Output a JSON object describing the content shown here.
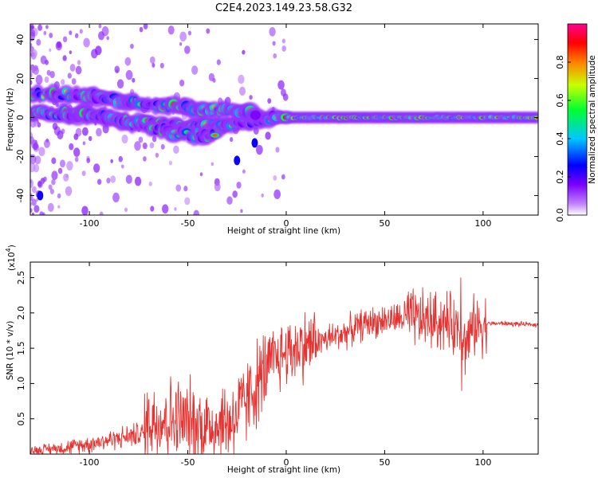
{
  "title": "C2E4.2023.149.23.58.G32",
  "colors": {
    "snr_line": "#e8322f",
    "spectrum_background": "#ffffff",
    "colormap": [
      "#ffffff",
      "#8a00ff",
      "#0000ff",
      "#00d0ff",
      "#00ff40",
      "#d4ff00",
      "#ff8000",
      "#ff0000",
      "#ff0090"
    ]
  },
  "chart_data": [
    {
      "type": "heatmap",
      "name": "spectrogram",
      "xlabel": "Height of straight line (km)",
      "ylabel": "Frequency (Hz)",
      "xlim": [
        -130,
        128
      ],
      "ylim": [
        -50,
        48
      ],
      "xticks": [
        -100,
        -50,
        0,
        50,
        100
      ],
      "yticks": [
        -40,
        -20,
        0,
        20,
        40
      ],
      "colorbar": {
        "label": "Normalized spectral amplitude",
        "range": [
          0,
          1
        ],
        "ticks": [
          0.0,
          0.2,
          0.4,
          0.6,
          0.8
        ]
      },
      "tracks": [
        {
          "x": [
            -130,
            -110,
            -95,
            -80,
            -60,
            -40,
            -25,
            -15,
            -5,
            10,
            50,
            100,
            128
          ],
          "y": [
            2,
            2,
            1,
            -2,
            -4,
            -5,
            -3,
            -1,
            0,
            0,
            0,
            0,
            0
          ]
        },
        {
          "x": [
            -130,
            -115,
            -95,
            -80,
            -60,
            -40,
            -25,
            -15
          ],
          "y": [
            12,
            12,
            11,
            8,
            6,
            4,
            3,
            2
          ]
        },
        {
          "x": [
            -70,
            -55,
            -45,
            -35
          ],
          "y": [
            -5,
            -8,
            -9,
            -10
          ]
        }
      ],
      "spots": [
        [
          -25,
          -22
        ],
        [
          -16,
          -13
        ],
        [
          -125,
          -40
        ]
      ]
    },
    {
      "type": "line",
      "name": "snr",
      "xlabel": "Height of straight line (km)",
      "ylabel": "SNR (10 * v/v)",
      "y_multiplier_label": "(x10",
      "y_multiplier_exp": "4",
      "xlim": [
        -130,
        128
      ],
      "ylim": [
        0,
        2.72
      ],
      "xticks": [
        -100,
        -50,
        0,
        50,
        100
      ],
      "yticks": [
        0.5,
        1.0,
        1.5,
        2.0,
        2.5
      ],
      "series": [
        {
          "x": [
            -130,
            -110,
            -90,
            -72,
            -70,
            -60,
            -50,
            -40,
            -30,
            -25,
            -20,
            -15,
            -10,
            -5,
            0,
            10,
            20,
            30,
            40,
            50,
            60,
            70,
            80,
            88,
            90,
            95,
            100,
            102,
            110,
            120,
            128
          ],
          "y": [
            0.05,
            0.1,
            0.2,
            0.3,
            0.5,
            0.5,
            0.45,
            0.4,
            0.45,
            0.55,
            0.75,
            1.0,
            1.2,
            1.35,
            1.45,
            1.55,
            1.62,
            1.72,
            1.85,
            1.9,
            1.92,
            1.9,
            1.88,
            1.8,
            1.5,
            1.8,
            1.85,
            1.85,
            1.85,
            1.84,
            1.83
          ]
        }
      ]
    }
  ]
}
